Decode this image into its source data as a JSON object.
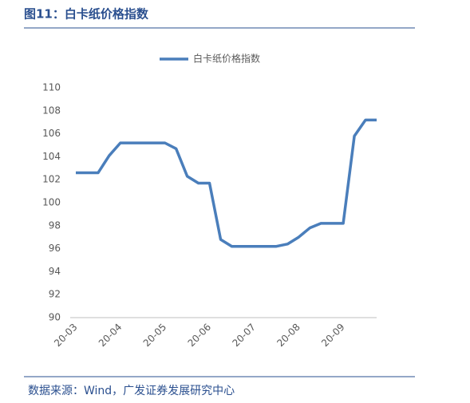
{
  "chart_data": {
    "type": "line",
    "title": "图11：白卡纸价格指数",
    "source": "数据来源：Wind，广发证券发展研究中心",
    "categories": [
      "20-03",
      null,
      null,
      null,
      "20-04",
      null,
      null,
      null,
      "20-05",
      null,
      null,
      null,
      "20-06",
      null,
      null,
      null,
      "20-07",
      null,
      null,
      null,
      "20-08",
      null,
      null,
      null,
      "20-09",
      null,
      null,
      null
    ],
    "series": [
      {
        "name": "白卡纸价格指数",
        "color": "#4a7ebb",
        "values": [
          102.6,
          102.6,
          102.6,
          104.1,
          105.2,
          105.2,
          105.2,
          105.2,
          105.2,
          104.7,
          102.3,
          101.7,
          101.7,
          96.8,
          96.2,
          96.2,
          96.2,
          96.2,
          96.2,
          96.4,
          97.0,
          97.8,
          98.2,
          98.2,
          98.2,
          105.8,
          107.2,
          107.2
        ]
      }
    ],
    "ylim": [
      90,
      110
    ],
    "yticks": [
      90,
      92,
      94,
      96,
      98,
      100,
      102,
      104,
      106,
      108,
      110
    ],
    "legend": "top",
    "grid": false
  }
}
